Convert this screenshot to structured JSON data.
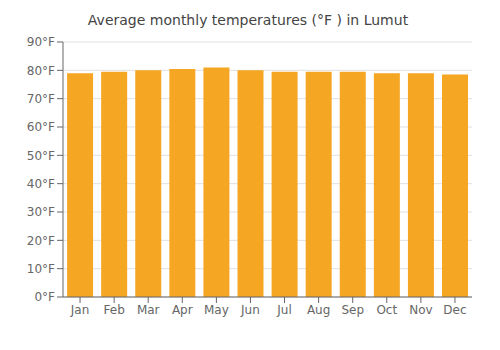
{
  "chart_data": {
    "type": "bar",
    "title": "Average monthly temperatures (°F ) in Lumut",
    "categories": [
      "Jan",
      "Feb",
      "Mar",
      "Apr",
      "May",
      "Jun",
      "Jul",
      "Aug",
      "Sep",
      "Oct",
      "Nov",
      "Dec"
    ],
    "values": [
      79,
      79.5,
      80,
      80.5,
      81,
      80,
      79.5,
      79.5,
      79.5,
      79,
      79,
      78.5
    ],
    "color": "#F5A623",
    "ylim": [
      0,
      90
    ],
    "yticks": [
      {
        "value": 0,
        "label": "0°F"
      },
      {
        "value": 10,
        "label": "10°F"
      },
      {
        "value": 20,
        "label": "20°F"
      },
      {
        "value": 30,
        "label": "30°F"
      },
      {
        "value": 40,
        "label": "40°F"
      },
      {
        "value": 50,
        "label": "50°F"
      },
      {
        "value": 60,
        "label": "60°F"
      },
      {
        "value": 70,
        "label": "70°F"
      },
      {
        "value": 80,
        "label": "80°F"
      },
      {
        "value": 90,
        "label": "90°F"
      }
    ],
    "grid": true
  }
}
